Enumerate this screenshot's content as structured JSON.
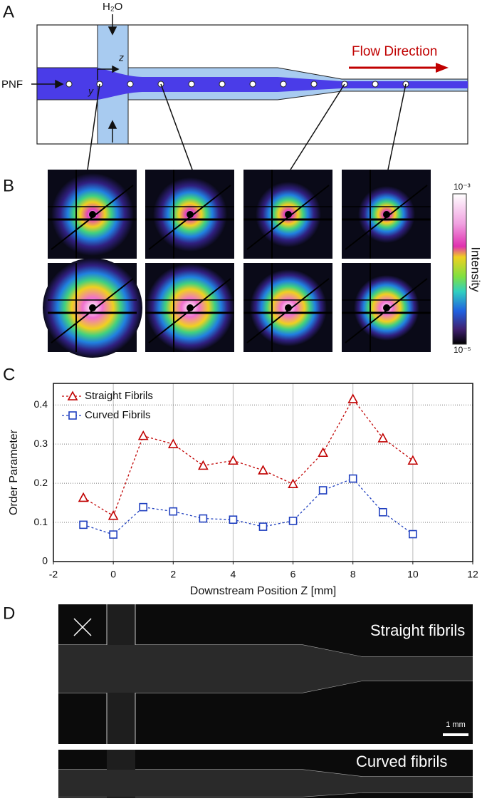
{
  "panel_labels": [
    "A",
    "B",
    "C",
    "D"
  ],
  "schematic": {
    "inlet_label": "PNF",
    "side_label": "H₂O",
    "axis_z": "z",
    "axis_y": "y",
    "flow_label": "Flow Direction"
  },
  "colorbar": {
    "top_label": "10⁻³",
    "bottom_label": "10⁻⁵",
    "title": "Intensity"
  },
  "chart_data": {
    "type": "line",
    "x_label": "Downstream Position Z [mm]",
    "y_label": "Order Parameter",
    "x": [
      -1,
      0,
      1,
      2,
      3,
      4,
      5,
      6,
      7,
      8,
      9,
      10
    ],
    "series": [
      {
        "name": "Straight Fibrils",
        "color": "#c00000",
        "marker": "triangle",
        "values": [
          0.163,
          0.117,
          0.321,
          0.3,
          0.245,
          0.258,
          0.233,
          0.198,
          0.278,
          0.415,
          0.315,
          0.258
        ]
      },
      {
        "name": "Curved Fibrils",
        "color": "#1f3fbf",
        "marker": "square",
        "values": [
          0.094,
          0.069,
          0.139,
          0.128,
          0.11,
          0.107,
          0.089,
          0.104,
          0.182,
          0.212,
          0.126,
          0.07
        ]
      }
    ],
    "xlim": [
      -2,
      12
    ],
    "xticks": [
      -2,
      0,
      2,
      4,
      6,
      8,
      10,
      12
    ],
    "ylim": [
      0,
      0.455
    ],
    "yticks": [
      0,
      0.1,
      0.2,
      0.3,
      0.4
    ],
    "grid": true,
    "legend": "upper left"
  },
  "microscopy": {
    "top_label": "Straight fibrils",
    "bottom_label": "Curved fibrils",
    "scale_label": "1 mm"
  }
}
